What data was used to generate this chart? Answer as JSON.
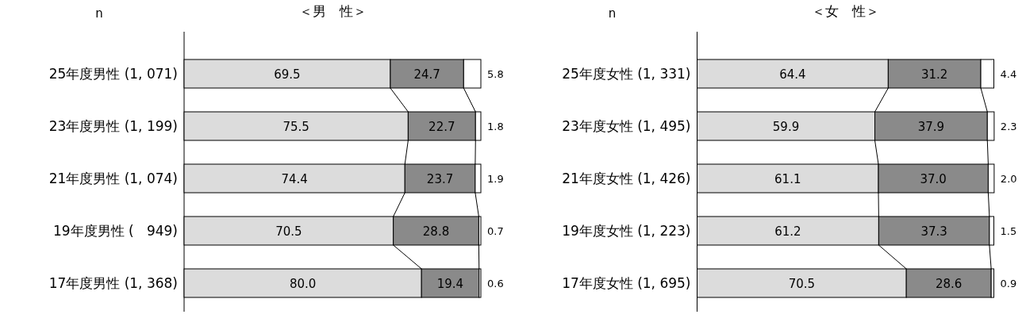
{
  "chart_data": [
    {
      "type": "bar",
      "orientation": "horizontal",
      "stacked": true,
      "title": "＜男　性＞",
      "annotations": [
        "n"
      ],
      "tick_labels": "y",
      "xlim": [
        0,
        100
      ],
      "categories": [
        "25年度男性 (1, 071)",
        "23年度男性 (1, 199)",
        "21年度男性 (1, 074)",
        "19年度男性 (   949)",
        "17年度男性 (1, 368)"
      ],
      "series": [
        {
          "color": "#dcdcdc",
          "values": [
            69.5,
            75.5,
            74.4,
            70.5,
            80.0
          ],
          "value_labels": [
            "69.5",
            "75.5",
            "74.4",
            "70.5",
            "80.0"
          ]
        },
        {
          "color": "#8a8a8a",
          "values": [
            24.7,
            22.7,
            23.7,
            28.8,
            19.4
          ],
          "value_labels": [
            "24.7",
            "22.7",
            "23.7",
            "28.8",
            "19.4"
          ]
        },
        {
          "color": "#ffffff",
          "values": [
            5.8,
            1.8,
            1.9,
            0.7,
            0.6
          ],
          "value_labels": [
            "5.8",
            "1.8",
            "1.9",
            "0.7",
            "0.6"
          ]
        }
      ]
    },
    {
      "type": "bar",
      "orientation": "horizontal",
      "stacked": true,
      "title": "＜女　性＞",
      "annotations": [
        "n"
      ],
      "tick_labels": "y",
      "xlim": [
        0,
        100
      ],
      "categories": [
        "25年度女性 (1, 331)",
        "23年度女性 (1, 495)",
        "21年度女性 (1, 426)",
        "19年度女性 (1, 223)",
        "17年度女性 (1, 695)"
      ],
      "series": [
        {
          "color": "#dcdcdc",
          "values": [
            64.4,
            59.9,
            61.1,
            61.2,
            70.5
          ],
          "value_labels": [
            "64.4",
            "59.9",
            "61.1",
            "61.2",
            "70.5"
          ]
        },
        {
          "color": "#8a8a8a",
          "values": [
            31.2,
            37.9,
            37.0,
            37.3,
            28.6
          ],
          "value_labels": [
            "31.2",
            "37.9",
            "37.0",
            "37.3",
            "28.6"
          ]
        },
        {
          "color": "#ffffff",
          "values": [
            4.4,
            2.3,
            2.0,
            1.5,
            0.9
          ],
          "value_labels": [
            "4.4",
            "2.3",
            "2.0",
            "1.5",
            "0.9"
          ]
        }
      ]
    }
  ]
}
